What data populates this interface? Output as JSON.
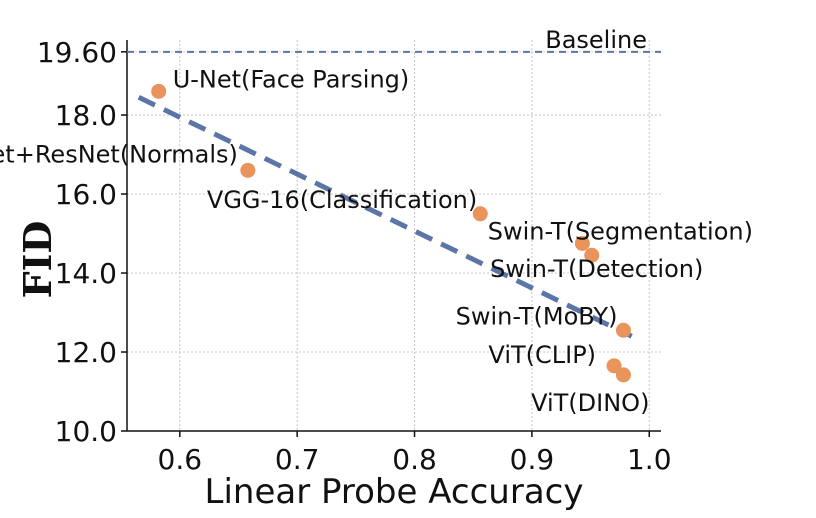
{
  "chart_data": {
    "type": "scatter",
    "title": "",
    "xlabel": "Linear Probe Accuracy",
    "ylabel": "FID",
    "xlim": [
      0.555,
      1.01
    ],
    "ylim": [
      10.0,
      19.9
    ],
    "xticks": [
      0.6,
      0.7,
      0.8,
      0.9,
      1.0
    ],
    "xtick_labels": [
      "0.6",
      "0.7",
      "0.8",
      "0.9",
      "1.0"
    ],
    "yticks": [
      10.0,
      12.0,
      14.0,
      16.0,
      18.0,
      19.6
    ],
    "ytick_labels": [
      "10.0",
      "12.0",
      "14.0",
      "16.0",
      "18.0",
      "19.60"
    ],
    "grid": true,
    "point_color": "#E8945A",
    "line_color": "#5B75A8",
    "baseline": {
      "label": "Baseline",
      "y": 19.6
    },
    "trend": {
      "x": [
        0.565,
        0.985
      ],
      "y": [
        18.45,
        12.4
      ]
    },
    "points": [
      {
        "label": "U-Net(Face Parsing)",
        "x": 0.582,
        "y": 18.6,
        "anchor": "start"
      },
      {
        "label": "U-Net+ResNet(Normals)",
        "x": 0.658,
        "y": 16.6,
        "anchor": "end"
      },
      {
        "label": "VGG-16(Classification)",
        "x": 0.856,
        "y": 15.5,
        "anchor": "end"
      },
      {
        "label": "Swin-T(Segmentation)",
        "x": 0.943,
        "y": 14.75,
        "anchor": "middle"
      },
      {
        "label": "Swin-T(Detection)",
        "x": 0.951,
        "y": 14.45,
        "anchor": "middle"
      },
      {
        "label": "Swin-T(MoBY)",
        "x": 0.978,
        "y": 12.55,
        "anchor": "end"
      },
      {
        "label": "ViT(CLIP)",
        "x": 0.97,
        "y": 11.65,
        "anchor": "end"
      },
      {
        "label": "ViT(DINO)",
        "x": 0.978,
        "y": 11.42,
        "anchor": "end"
      }
    ]
  }
}
